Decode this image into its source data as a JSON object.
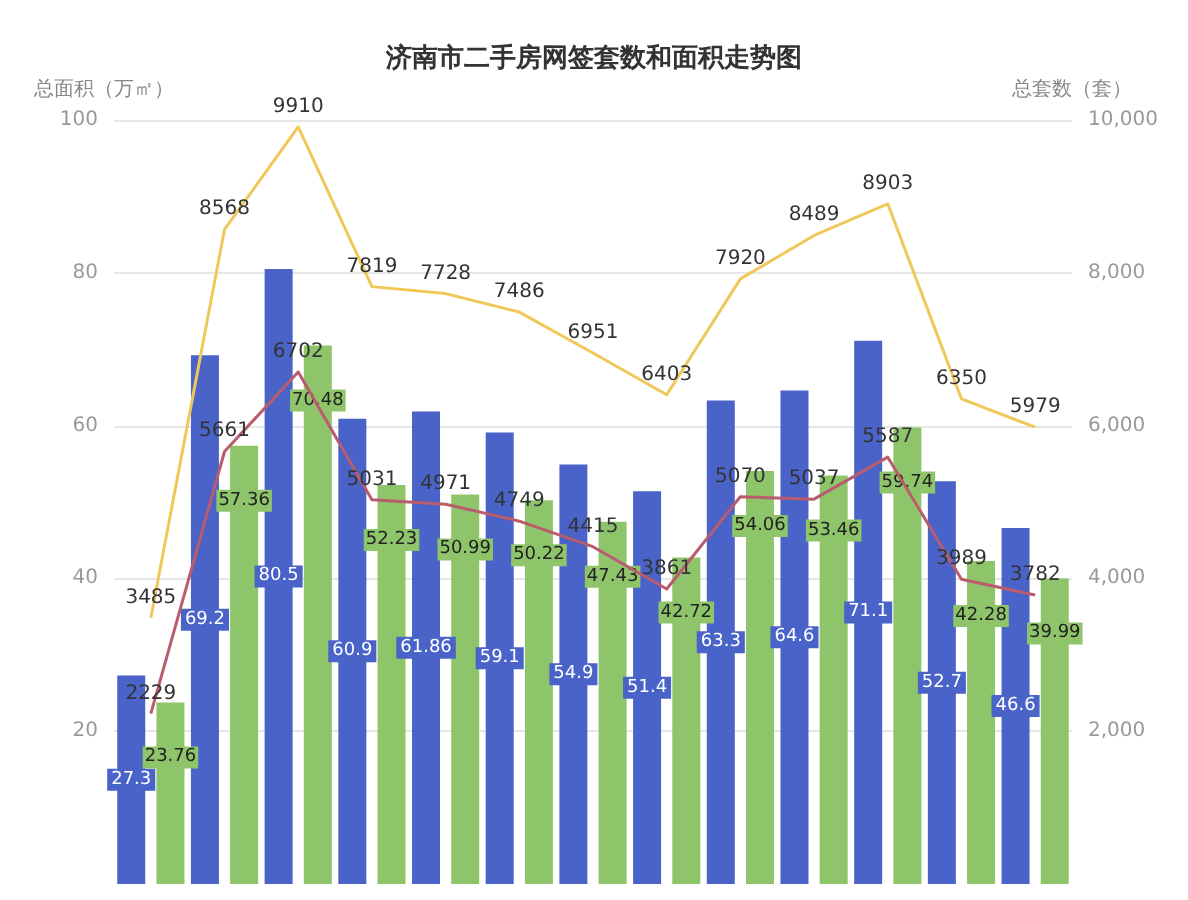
{
  "chart_data": {
    "type": "bar",
    "title": "济南市二手房网签套数和面积走势图",
    "ylabel": "总面积（万㎡）",
    "y2label": "总套数（套）",
    "categories": [
      null,
      null,
      null,
      null,
      null,
      null,
      null,
      null,
      null,
      null,
      null,
      null,
      null
    ],
    "series": [
      {
        "color": "#4a63c8",
        "values": [
          27.3,
          69.2,
          80.5,
          60.9,
          61.86,
          59.1,
          54.9,
          51.4,
          63.3,
          64.6,
          71.1,
          52.7,
          46.6
        ]
      },
      {
        "color": "#8fc56a",
        "values": [
          23.76,
          57.36,
          70.48,
          52.23,
          50.99,
          50.22,
          47.43,
          42.72,
          54.06,
          53.46,
          59.74,
          42.28,
          39.99
        ]
      },
      {
        "type": "line",
        "axis": "y2",
        "color": "#f0c85a",
        "values": [
          3485,
          8568,
          9910,
          7819,
          7728,
          7486,
          6951,
          6403,
          7920,
          8489,
          8903,
          6350,
          5979
        ]
      },
      {
        "type": "line",
        "axis": "y2",
        "color": "#b85c6e",
        "values": [
          2229,
          5661,
          6702,
          5031,
          4971,
          4749,
          4415,
          3861,
          5070,
          5037,
          5587,
          3989,
          3782
        ]
      }
    ],
    "ylim": [
      0,
      100
    ],
    "yticks": [
      20,
      40,
      60,
      80,
      100
    ],
    "y2lim": [
      0,
      10000
    ],
    "y2ticks": [
      {
        "value": 2000,
        "label": "2,000"
      },
      {
        "value": 4000,
        "label": "4,000"
      },
      {
        "value": 6000,
        "label": "6,000"
      },
      {
        "value": 8000,
        "label": "8,000"
      },
      {
        "value": 10000,
        "label": "10,000"
      }
    ],
    "grid": "y",
    "marker": "none",
    "data_labels": true
  }
}
